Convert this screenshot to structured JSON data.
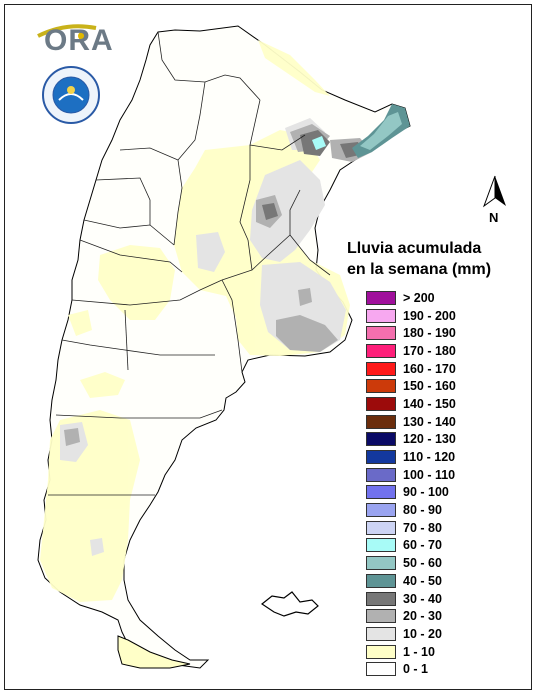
{
  "logo": {
    "text": "ORA",
    "icon": "sun-arc-logo"
  },
  "seal": {
    "icon": "smn-seal-icon"
  },
  "north_arrow": {
    "label": "N",
    "icon": "north-arrow-icon"
  },
  "legend": {
    "title_line1": "Lluvia acumulada",
    "title_line2": "en la semana (mm)",
    "items": [
      {
        "label": "> 200",
        "color": "#a0109c"
      },
      {
        "label": "190 - 200",
        "color": "#f7a8f0"
      },
      {
        "label": "180 - 190",
        "color": "#f46fae"
      },
      {
        "label": "170 - 180",
        "color": "#ff1f7a"
      },
      {
        "label": "160 - 170",
        "color": "#ff1a1a"
      },
      {
        "label": "150 - 160",
        "color": "#cc3a0a"
      },
      {
        "label": "140 - 150",
        "color": "#9c0b0b"
      },
      {
        "label": "130 - 140",
        "color": "#6b2d0c"
      },
      {
        "label": "120 - 130",
        "color": "#0a0a66"
      },
      {
        "label": "110 - 120",
        "color": "#13389e"
      },
      {
        "label": "100 - 110",
        "color": "#6a6ac8"
      },
      {
        "label": "90 - 100",
        "color": "#7272ee"
      },
      {
        "label": "80 - 90",
        "color": "#9aa4f0"
      },
      {
        "label": "70 - 80",
        "color": "#cdd4f4"
      },
      {
        "label": "60 - 70",
        "color": "#a8fbf7"
      },
      {
        "label": "50 - 60",
        "color": "#93c7c4"
      },
      {
        "label": "40 - 50",
        "color": "#5e9495"
      },
      {
        "label": "30 - 40",
        "color": "#777777"
      },
      {
        "label": "20 - 30",
        "color": "#b1b1b1"
      },
      {
        "label": "10 - 20",
        "color": "#e4e4e4"
      },
      {
        "label": "1 - 10",
        "color": "#ffffc8"
      },
      {
        "label": "0 - 1",
        "color": "#ffffff"
      }
    ]
  }
}
